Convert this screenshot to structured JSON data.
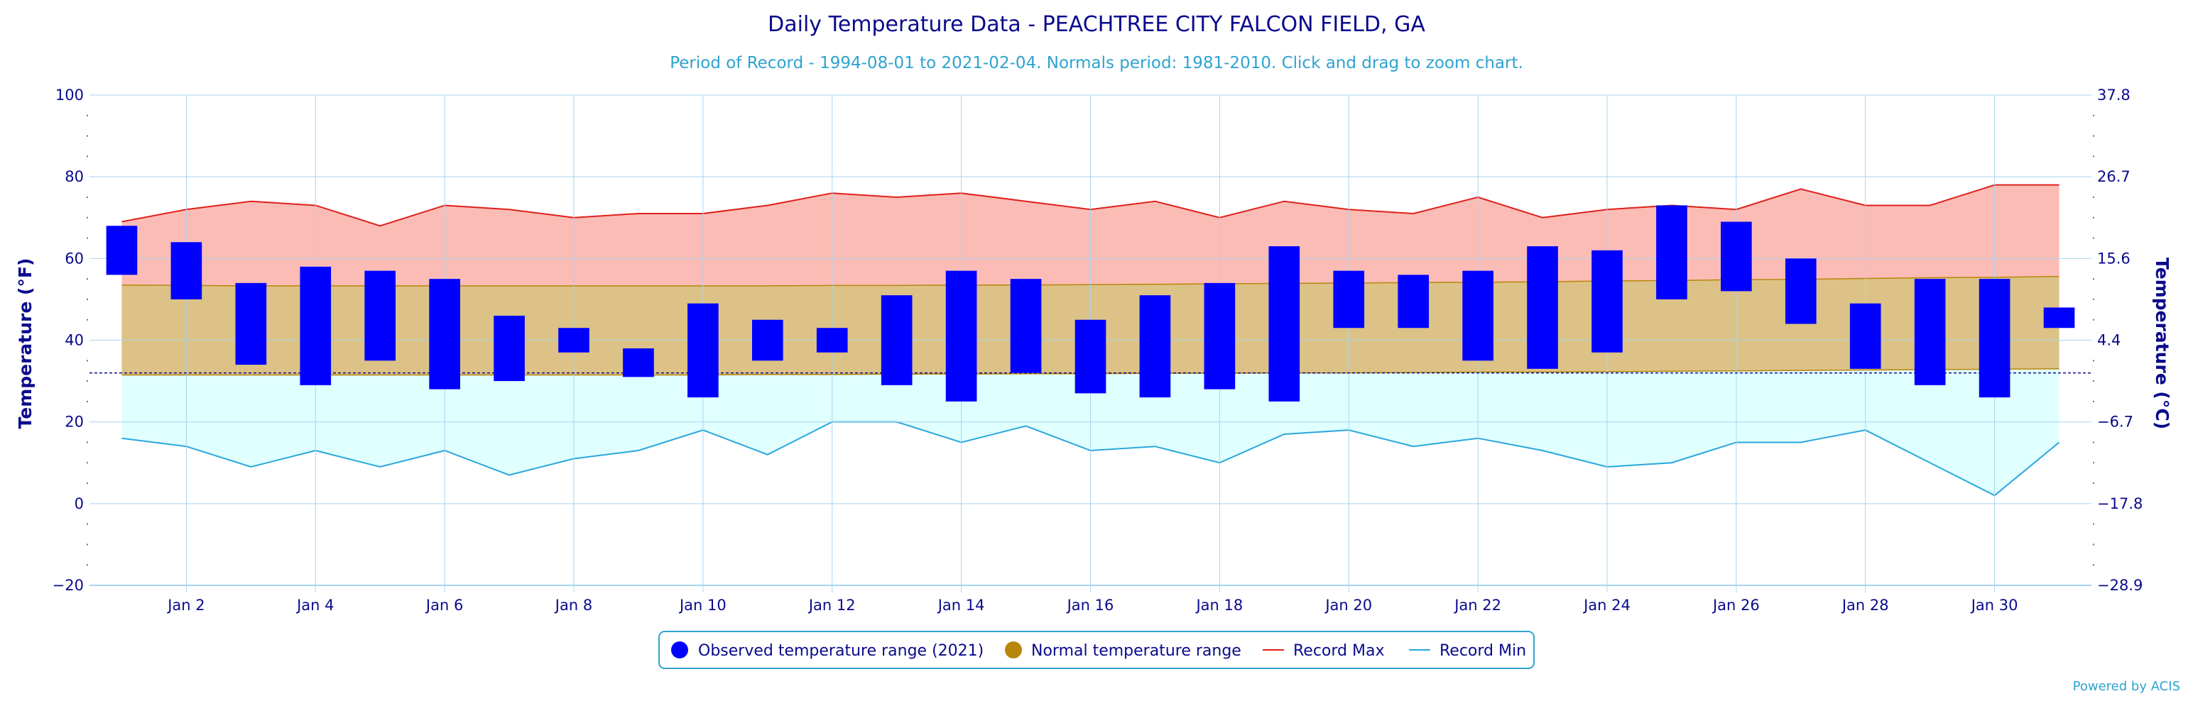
{
  "title": "Daily Temperature Data - PEACHTREE CITY FALCON FIELD, GA",
  "subtitle": "Period of Record - 1994-08-01 to 2021-02-04. Normals period: 1981-2010. Click and drag to zoom chart.",
  "credits": "Powered by ACIS",
  "colors": {
    "title": "#0a0a8c",
    "subtitle": "#2ea3cf",
    "observed": "#0000ff",
    "normal_fill": "#dcc286",
    "normal_line": "#b8860b",
    "normal_legend": "#b8860b",
    "record_max_fill": "#fbbcb6",
    "record_max_line": "#e0201b",
    "record_min_fill": "#e0ffff",
    "record_min_line": "#2aa7dc",
    "grid": "#a9d4ef",
    "freezing_line": "#0a0a8c"
  },
  "chart_data": {
    "type": "bar",
    "x_label_days": [
      2,
      4,
      6,
      8,
      10,
      12,
      14,
      16,
      18,
      20,
      22,
      24,
      26,
      28,
      30
    ],
    "x_tick_labels": [
      "Jan 2",
      "Jan 4",
      "Jan 6",
      "Jan 8",
      "Jan 10",
      "Jan 12",
      "Jan 14",
      "Jan 16",
      "Jan 18",
      "Jan 20",
      "Jan 22",
      "Jan 24",
      "Jan 26",
      "Jan 28",
      "Jan 30"
    ],
    "x_range": [
      0.5,
      31.5
    ],
    "ylabel_left": "Temperature (°F)",
    "ylabel_right": "Temperature (°C)",
    "ylim": [
      -20,
      100
    ],
    "y_ticks_f": [
      "−20",
      "0",
      "20",
      "40",
      "60",
      "80",
      "100"
    ],
    "y_ticks_c": [
      "−28.9",
      "−17.8",
      "−6.7",
      "4.4",
      "15.6",
      "26.7",
      "37.8"
    ],
    "y_tick_values": [
      -20,
      0,
      20,
      40,
      60,
      80,
      100
    ],
    "freezing_line_f": 32,
    "grid": true,
    "legend_placement": "bottom-center",
    "days": [
      1,
      2,
      3,
      4,
      5,
      6,
      7,
      8,
      9,
      10,
      11,
      12,
      13,
      14,
      15,
      16,
      17,
      18,
      19,
      20,
      21,
      22,
      23,
      24,
      25,
      26,
      27,
      28,
      29,
      30,
      31
    ],
    "series": [
      {
        "name": "Observed temperature range (2021)",
        "kind": "range-bar",
        "low": [
          56,
          50,
          34,
          29,
          35,
          28,
          30,
          37,
          31,
          26,
          35,
          37,
          29,
          25,
          32,
          27,
          26,
          28,
          25,
          43,
          43,
          35,
          33,
          37,
          50,
          52,
          44,
          33,
          29,
          26,
          43
        ],
        "high": [
          68,
          64,
          54,
          58,
          57,
          55,
          46,
          43,
          38,
          49,
          45,
          43,
          51,
          57,
          55,
          45,
          51,
          54,
          63,
          57,
          56,
          57,
          63,
          62,
          73,
          69,
          60,
          49,
          55,
          55,
          48
        ]
      },
      {
        "name": "Normal temperature range",
        "kind": "range-area",
        "low": [
          31.5,
          31.5,
          31.5,
          31.5,
          31.5,
          31.5,
          31.5,
          31.5,
          31.5,
          31.5,
          31.6,
          31.6,
          31.7,
          31.7,
          31.8,
          31.8,
          31.9,
          31.9,
          32.0,
          32.0,
          32.1,
          32.2,
          32.2,
          32.3,
          32.4,
          32.5,
          32.6,
          32.7,
          32.8,
          32.9,
          33.0
        ],
        "high": [
          53.5,
          53.4,
          53.3,
          53.3,
          53.3,
          53.3,
          53.3,
          53.3,
          53.3,
          53.3,
          53.3,
          53.4,
          53.4,
          53.5,
          53.5,
          53.6,
          53.7,
          53.8,
          53.9,
          54.0,
          54.1,
          54.2,
          54.3,
          54.5,
          54.6,
          54.8,
          54.9,
          55.1,
          55.3,
          55.4,
          55.6
        ]
      },
      {
        "name": "Record Max",
        "kind": "line",
        "values": [
          69,
          72,
          74,
          73,
          68,
          73,
          72,
          70,
          71,
          71,
          73,
          76,
          75,
          76,
          74,
          72,
          74,
          70,
          74,
          72,
          71,
          75,
          70,
          72,
          73,
          72,
          77,
          73,
          73,
          78,
          78
        ]
      },
      {
        "name": "Record Min",
        "kind": "line",
        "values": [
          16,
          14,
          9,
          13,
          9,
          13,
          7,
          11,
          13,
          18,
          12,
          20,
          20,
          15,
          19,
          13,
          14,
          10,
          17,
          18,
          14,
          16,
          13,
          9,
          10,
          15,
          15,
          18,
          10,
          2,
          15
        ]
      }
    ]
  }
}
